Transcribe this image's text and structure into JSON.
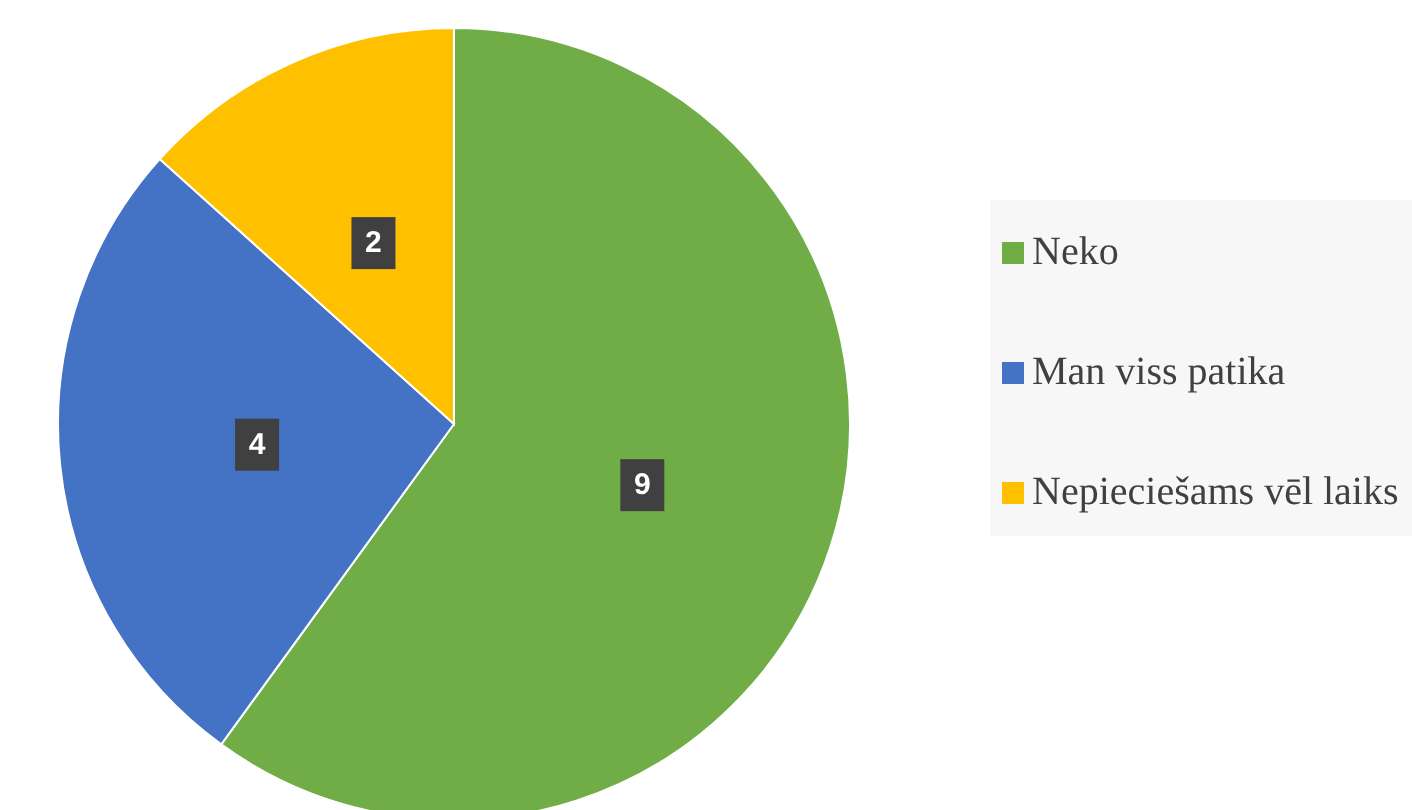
{
  "chart_data": {
    "type": "pie",
    "categories": [
      "Neko",
      "Man viss patika",
      "Nepieciešams vēl laiks"
    ],
    "values": [
      9,
      4,
      2
    ],
    "colors": [
      "#70ad47",
      "#4472c4",
      "#ffc000"
    ],
    "data_labels": true,
    "legend": "right"
  }
}
